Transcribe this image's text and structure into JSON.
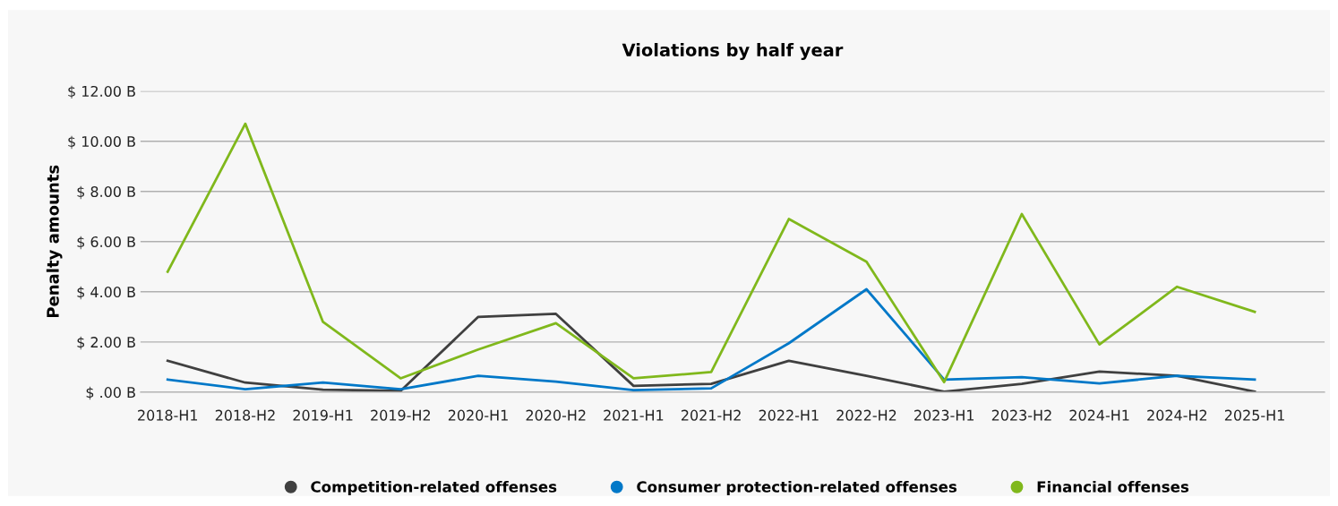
{
  "chart_data": {
    "type": "line",
    "title": "Violations by half year",
    "ylabel": "Penalty amounts",
    "categories": [
      "2018-H1",
      "2018-H2",
      "2019-H1",
      "2019-H2",
      "2020-H1",
      "2020-H2",
      "2021-H1",
      "2021-H2",
      "2022-H1",
      "2022-H2",
      "2023-H1",
      "2023-H2",
      "2024-H1",
      "2024-H2",
      "2025-H1"
    ],
    "series": [
      {
        "name": "Competition-related offenses",
        "color": "#404040",
        "values": [
          1.25,
          0.38,
          0.1,
          0.05,
          3.0,
          3.12,
          0.25,
          0.33,
          1.25,
          0.65,
          0.02,
          0.33,
          0.82,
          0.65,
          0.02
        ]
      },
      {
        "name": "Consumer protection-related offenses",
        "color": "#0078c8",
        "values": [
          0.5,
          0.12,
          0.38,
          0.12,
          0.65,
          0.42,
          0.08,
          0.15,
          1.95,
          4.1,
          0.5,
          0.6,
          0.35,
          0.65,
          0.5
        ]
      },
      {
        "name": "Financial offenses",
        "color": "#80b81c",
        "values": [
          4.8,
          10.7,
          2.8,
          0.55,
          1.7,
          2.75,
          0.55,
          0.8,
          6.9,
          5.2,
          0.4,
          7.1,
          1.9,
          4.2,
          3.2
        ]
      }
    ],
    "ylim": [
      0,
      12
    ],
    "yticks": [
      {
        "value": 0,
        "label": "$ .00 B"
      },
      {
        "value": 2,
        "label": "$ 2.00 B"
      },
      {
        "value": 4,
        "label": "$ 4.00 B"
      },
      {
        "value": 6,
        "label": "$ 6.00 B"
      },
      {
        "value": 8,
        "label": "$ 8.00 B"
      },
      {
        "value": 10,
        "label": "$ 10.00 B"
      },
      {
        "value": 12,
        "label": "$ 12.00 B"
      }
    ],
    "grid": "y",
    "legend": "bottom"
  }
}
